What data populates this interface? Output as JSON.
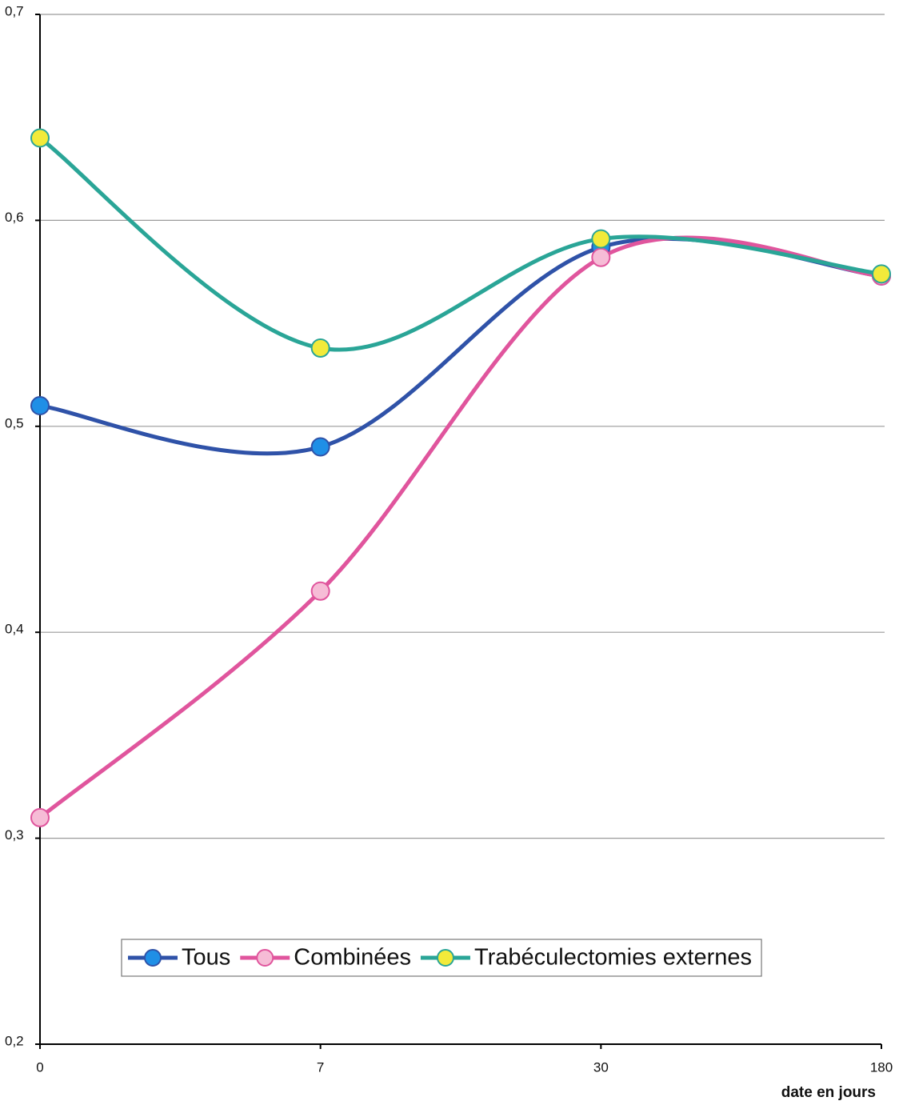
{
  "chart_data": {
    "type": "line",
    "x_label": "date en jours",
    "categories": [
      "0",
      "7",
      "30",
      "180"
    ],
    "series": [
      {
        "name": "Tous",
        "color": "#2f52a8",
        "marker_color": "#1f8fe6",
        "values": [
          0.51,
          0.49,
          0.587,
          0.573
        ]
      },
      {
        "name": "Combinées",
        "color": "#e0559d",
        "marker_color": "#f6bcd6",
        "values": [
          0.31,
          0.42,
          0.582,
          0.573
        ]
      },
      {
        "name": "Trabéculectomies externes",
        "color": "#2aa597",
        "marker_color": "#f2ea3a",
        "values": [
          0.64,
          0.538,
          0.591,
          0.574
        ]
      }
    ],
    "ylim": [
      0.2,
      0.7
    ],
    "yticks": [
      {
        "value": 0.2,
        "label": "0,2"
      },
      {
        "value": 0.3,
        "label": "0,3"
      },
      {
        "value": 0.4,
        "label": "0,4"
      },
      {
        "value": 0.5,
        "label": "0,5"
      },
      {
        "value": 0.6,
        "label": "0,6"
      },
      {
        "value": 0.7,
        "label": "0,7"
      }
    ],
    "grid": true,
    "smooth": true
  }
}
